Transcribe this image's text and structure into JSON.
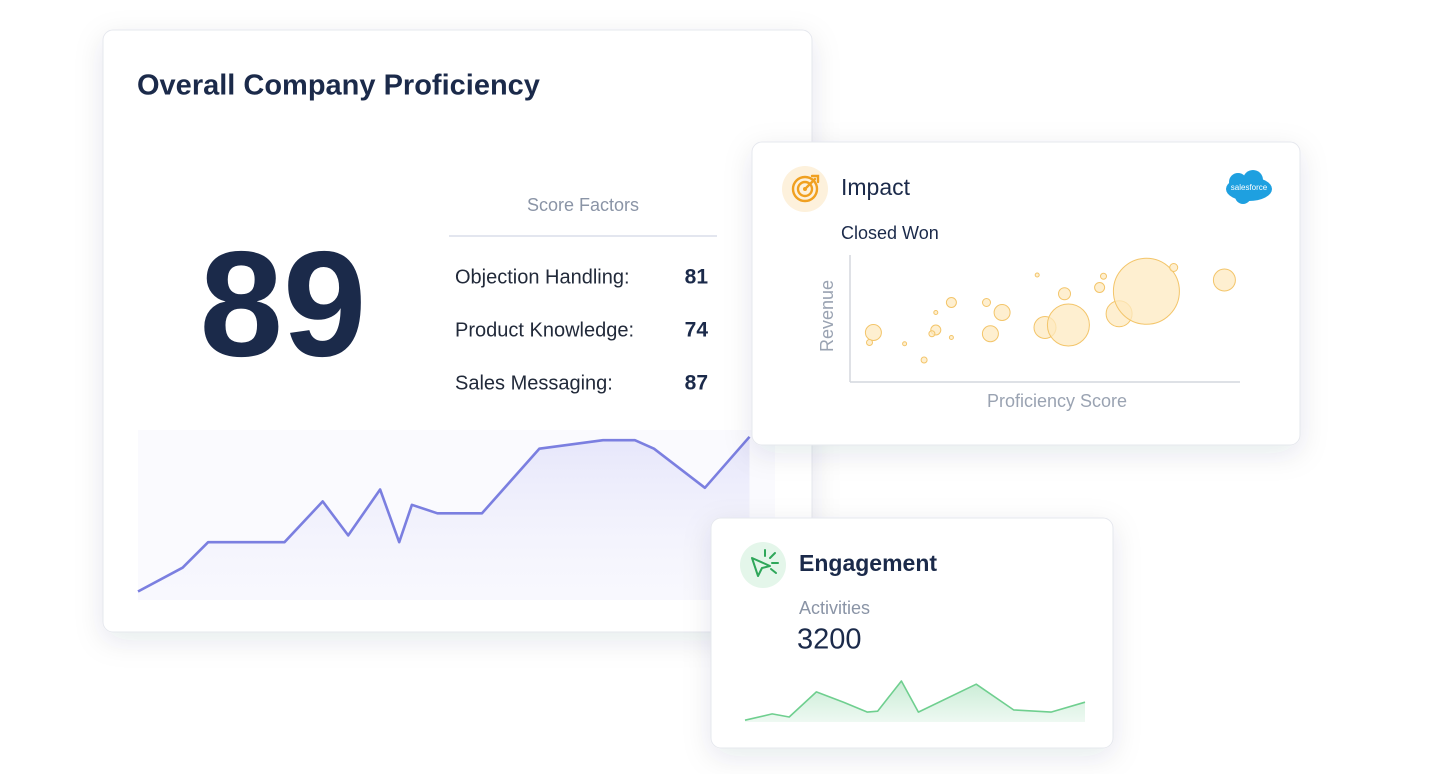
{
  "proficiency": {
    "title": "Overall Company Proficiency",
    "score": 89,
    "factors_title": "Score Factors",
    "factors": [
      {
        "label": "Objection Handling:",
        "value": 81
      },
      {
        "label": "Product Knowledge:",
        "value": 74
      },
      {
        "label": "Sales Messaging:",
        "value": 87
      }
    ],
    "trend": {
      "type": "line",
      "color": "#7b7fe0",
      "x": [
        0,
        7,
        11,
        23,
        29,
        33,
        38,
        41,
        43,
        47,
        54,
        63,
        73,
        78,
        81,
        89,
        96
      ],
      "y": [
        5,
        19,
        34,
        34,
        58,
        38,
        65,
        34,
        56,
        51,
        51,
        89,
        94,
        94,
        89,
        66,
        96
      ],
      "xlim": [
        0,
        100
      ],
      "ylim": [
        0,
        100
      ]
    }
  },
  "impact": {
    "title": "Impact",
    "logo_text": "salesforce",
    "subtitle": "Closed Won",
    "chart": {
      "type": "scatter",
      "x_label": "Proficiency Score",
      "y_label": "Revenue",
      "color": "#f3c56a",
      "x": [
        6,
        5,
        14,
        19,
        22,
        22,
        21,
        26,
        26,
        35,
        36,
        39,
        48,
        50,
        55,
        56,
        64,
        65,
        69,
        76,
        83,
        96
      ],
      "y": [
        38,
        30,
        29,
        16,
        54,
        40,
        37,
        62,
        34,
        62,
        37,
        54,
        84,
        42,
        69,
        44,
        74,
        83,
        53,
        71,
        90,
        80
      ],
      "size": [
        8,
        3,
        2,
        3,
        2,
        5,
        3,
        5,
        2,
        4,
        8,
        8,
        2,
        11,
        6,
        21,
        5,
        3,
        13,
        33,
        4,
        11
      ],
      "xlim": [
        0,
        100
      ],
      "ylim": [
        0,
        100
      ]
    }
  },
  "engagement": {
    "title": "Engagement",
    "metric_label": "Activities",
    "metric_value": 3200,
    "trend": {
      "type": "area",
      "color": "#6fcf8f",
      "x": [
        0,
        8,
        13,
        21,
        29,
        36,
        39,
        46,
        51,
        68,
        79,
        90,
        100
      ],
      "y": [
        4,
        18,
        11,
        67,
        44,
        22,
        24,
        91,
        22,
        84,
        27,
        22,
        44
      ],
      "xlim": [
        0,
        100
      ],
      "ylim": [
        0,
        100
      ]
    }
  }
}
